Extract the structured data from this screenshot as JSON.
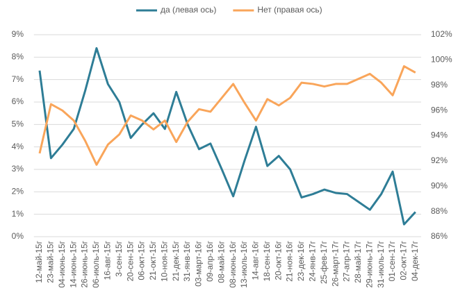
{
  "chart_data": {
    "type": "line",
    "categories": [
      "12-май-15г",
      "23-май-15г",
      "04-июнь-15г",
      "14-июнь-15г",
      "26-июнь-15г",
      "06-июль-15г",
      "16-авг-15г",
      "3-сен-15г",
      "20-сен-15г",
      "06-окт-15г",
      "21-окт-15г",
      "10-ноя-15г",
      "21-дек-15г",
      "31-янв-16г",
      "03-март-16г",
      "09-апр-16г",
      "08-май-16г",
      "08-июнь-16г",
      "13-июль-16г",
      "14-авг-16г",
      "18-сен-16г",
      "20-окт-16г",
      "21-ноя-16г",
      "23-дек-16г",
      "24-янв-17г",
      "25-фев-17г",
      "26-март-17г",
      "27-апр-17г",
      "28-май-17г",
      "29-июнь-17г",
      "31-июль-17г",
      "01-сен-17г",
      "02-окт-17г",
      "04-дек-17г"
    ],
    "series": [
      {
        "name": "да (левая ось)",
        "color": "#2e7d96",
        "values": [
          7.4,
          3.5,
          4.1,
          4.8,
          6.5,
          8.4,
          6.8,
          6.0,
          4.4,
          5.0,
          5.5,
          4.8,
          6.45,
          5.0,
          3.9,
          4.15,
          3.0,
          1.8,
          3.4,
          4.9,
          3.15,
          3.6,
          3.0,
          1.75,
          1.9,
          2.1,
          1.95,
          1.9,
          1.55,
          1.2,
          1.9,
          2.9,
          0.55,
          1.1
        ]
      },
      {
        "name": "Нет (правая ось)",
        "color": "#f9a55a",
        "axis": "y2",
        "values": [
          92.6,
          96.5,
          96.0,
          95.2,
          93.6,
          91.7,
          93.3,
          94.1,
          95.6,
          95.2,
          94.5,
          95.2,
          93.5,
          95.1,
          96.1,
          95.9,
          97.0,
          98.1,
          96.6,
          95.2,
          96.9,
          96.4,
          97.0,
          98.2,
          98.1,
          97.9,
          98.1,
          98.1,
          98.5,
          98.9,
          98.2,
          97.2,
          99.5,
          99.0
        ]
      }
    ],
    "ylim": [
      0,
      9
    ],
    "yticks": [
      {
        "value": 0,
        "label": "0%"
      },
      {
        "value": 1,
        "label": "1%"
      },
      {
        "value": 2,
        "label": "2%"
      },
      {
        "value": 3,
        "label": "3%"
      },
      {
        "value": 4,
        "label": "4%"
      },
      {
        "value": 5,
        "label": "5%"
      },
      {
        "value": 6,
        "label": "6%"
      },
      {
        "value": 7,
        "label": "7%"
      },
      {
        "value": 8,
        "label": "8%"
      },
      {
        "value": 9,
        "label": "9%"
      }
    ],
    "y2lim": [
      86,
      102
    ],
    "y2ticks": [
      {
        "value": 86,
        "label": "86%"
      },
      {
        "value": 88,
        "label": "88%"
      },
      {
        "value": 90,
        "label": "90%"
      },
      {
        "value": 92,
        "label": "92%"
      },
      {
        "value": 94,
        "label": "94%"
      },
      {
        "value": 96,
        "label": "96%"
      },
      {
        "value": 98,
        "label": "98%"
      },
      {
        "value": 100,
        "label": "100%"
      },
      {
        "value": 102,
        "label": "102%"
      }
    ],
    "grid": true,
    "legend": "top"
  }
}
